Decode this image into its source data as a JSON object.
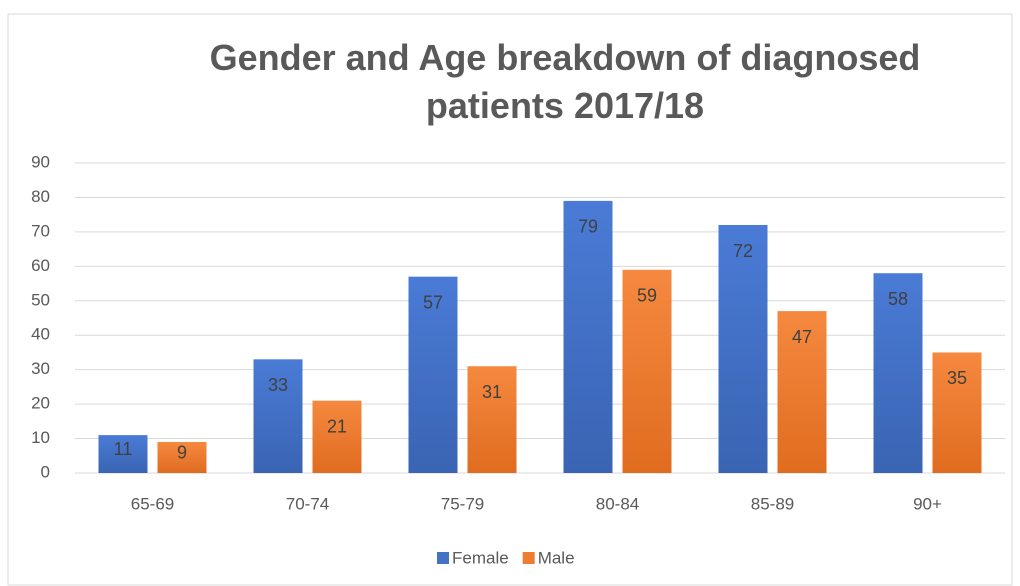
{
  "chart_data": {
    "type": "bar",
    "title": "Gender and Age breakdown of diagnosed patients 2017/18",
    "categories": [
      "65-69",
      "70-74",
      "75-79",
      "80-84",
      "85-89",
      "90+"
    ],
    "series": [
      {
        "name": "Female",
        "color": "#4472c4",
        "values": [
          11,
          33,
          57,
          79,
          72,
          58
        ]
      },
      {
        "name": "Male",
        "color": "#ed7d31",
        "values": [
          9,
          21,
          31,
          59,
          47,
          35
        ]
      }
    ],
    "ylim": [
      0,
      90
    ],
    "yticks": [
      0,
      10,
      20,
      30,
      40,
      50,
      60,
      70,
      80,
      90
    ],
    "grid": true,
    "legend": "bottom"
  }
}
